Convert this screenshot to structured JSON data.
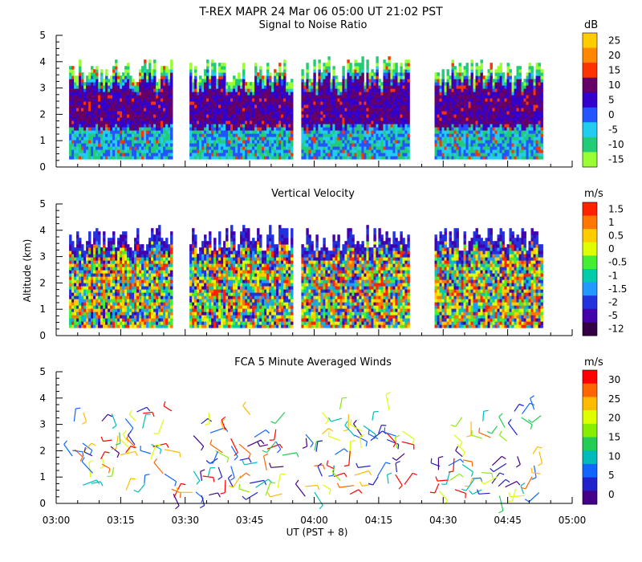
{
  "header": {
    "title": "T-REX   MAPR 24 Mar 06   05:00 UT   21:02   PST"
  },
  "x_axis": {
    "label": "UT  (PST + 8)",
    "ticks": [
      "03:00",
      "03:15",
      "03:30",
      "03:45",
      "04:00",
      "04:15",
      "04:30",
      "04:45",
      "05:00"
    ]
  },
  "y_axis": {
    "label": "Altitude (km)",
    "ticks": [
      "0",
      "1",
      "2",
      "3",
      "4",
      "5"
    ]
  },
  "chart_data": [
    {
      "type": "heatmap",
      "title": "Signal to Noise Ratio",
      "xlabel": "UT  (PST + 8)",
      "ylabel": "Altitude (km)",
      "xlim_minutes": [
        0,
        120
      ],
      "ylim": [
        0,
        5
      ],
      "data_segments_minutes": [
        [
          3,
          27
        ],
        [
          31,
          55
        ],
        [
          57,
          82
        ],
        [
          88,
          113
        ]
      ],
      "colorbar": {
        "unit": "dB",
        "labels": [
          "25",
          "20",
          "15",
          "10",
          "5",
          "0",
          "-5",
          "-10",
          "-15"
        ],
        "colors": [
          "#ffcc00",
          "#ff8800",
          "#ff3300",
          "#660066",
          "#3300cc",
          "#2255ff",
          "#22ccee",
          "#22cc77",
          "#99ff33"
        ]
      }
    },
    {
      "type": "heatmap",
      "title": "Vertical Velocity",
      "xlabel": "UT  (PST + 8)",
      "ylabel": "Altitude (km)",
      "xlim_minutes": [
        0,
        120
      ],
      "ylim": [
        0,
        5
      ],
      "data_segments_minutes": [
        [
          3,
          27
        ],
        [
          31,
          55
        ],
        [
          57,
          82
        ],
        [
          88,
          113
        ]
      ],
      "colorbar": {
        "unit": "m/s",
        "labels": [
          "1.5",
          "1",
          "0.5",
          "0",
          "-0.5",
          "-1",
          "-1.5",
          "-2",
          "-5",
          "-12"
        ],
        "colors": [
          "#ff2200",
          "#ff7700",
          "#ffcc00",
          "#ddff00",
          "#44ee33",
          "#00ccaa",
          "#2299ff",
          "#2233dd",
          "#4400aa",
          "#330044"
        ]
      }
    },
    {
      "type": "scatter",
      "title": "FCA 5 Minute Averaged Winds",
      "xlabel": "UT  (PST + 8)",
      "ylabel": "Altitude (km)",
      "xlim_minutes": [
        0,
        120
      ],
      "ylim": [
        0,
        5
      ],
      "data_segments_minutes": [
        [
          3,
          27
        ],
        [
          31,
          55
        ],
        [
          57,
          82
        ],
        [
          88,
          113
        ]
      ],
      "colorbar": {
        "unit": "m/s",
        "labels": [
          "30",
          "25",
          "20",
          "15",
          "10",
          "5",
          "0"
        ],
        "colors": [
          "#ff0000",
          "#ff6600",
          "#ffbb00",
          "#ddff00",
          "#88ee00",
          "#22cc55",
          "#00bbbb",
          "#1166ff",
          "#2222cc",
          "#440088"
        ]
      }
    }
  ]
}
